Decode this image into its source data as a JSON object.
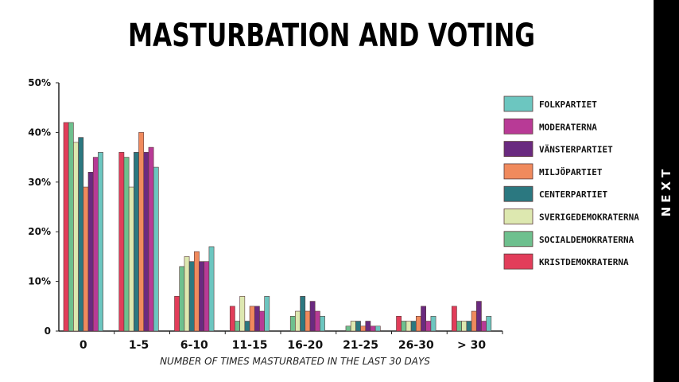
{
  "title": "MASTURBATION AND VOTING",
  "next_label": "NEXT",
  "chart_data": {
    "type": "bar",
    "title": "MASTURBATION AND VOTING",
    "xlabel": "NUMBER OF TIMES MASTURBATED IN THE LAST 30 DAYS",
    "ylabel": "",
    "ylim": [
      0,
      50
    ],
    "yticks": [
      0,
      10,
      20,
      30,
      40,
      50
    ],
    "ytick_labels": [
      "0",
      "10%",
      "20%",
      "30%",
      "40%",
      "50%"
    ],
    "grid": false,
    "legend_position": "right",
    "categories": [
      "0",
      "1-5",
      "6-10",
      "11-15",
      "16-20",
      "21-25",
      "26-30",
      "> 30"
    ],
    "series": [
      {
        "name": "KRISTDEMOKRATERNA",
        "color": "#e23d5a",
        "values": [
          42,
          36,
          7,
          5,
          0,
          0,
          3,
          5
        ]
      },
      {
        "name": "SOCIALDEMOKRATERNA",
        "color": "#6ec08e",
        "values": [
          42,
          35,
          13,
          2,
          3,
          1,
          2,
          2
        ]
      },
      {
        "name": "SVERIGEDEMOKRATERNA",
        "color": "#dde8b0",
        "values": [
          38,
          29,
          15,
          7,
          4,
          2,
          2,
          2
        ]
      },
      {
        "name": "CENTERPARTIET",
        "color": "#2b7880",
        "values": [
          39,
          36,
          14,
          2,
          7,
          2,
          2,
          2
        ]
      },
      {
        "name": "MILJÖPARTIET",
        "color": "#f08a5d",
        "values": [
          29,
          40,
          16,
          5,
          4,
          1,
          3,
          4
        ]
      },
      {
        "name": "VÄNSTERPARTIET",
        "color": "#6a2a80",
        "values": [
          32,
          36,
          14,
          5,
          6,
          2,
          5,
          6
        ]
      },
      {
        "name": "MODERATERNA",
        "color": "#b83a96",
        "values": [
          35,
          37,
          14,
          4,
          4,
          1,
          2,
          2
        ]
      },
      {
        "name": "FOLKPARTIET",
        "color": "#6cc6c0",
        "values": [
          36,
          33,
          17,
          7,
          3,
          1,
          3,
          3
        ]
      }
    ],
    "legend_order": [
      "FOLKPARTIET",
      "MODERATERNA",
      "VÄNSTERPARTIET",
      "MILJÖPARTIET",
      "CENTERPARTIET",
      "SVERIGEDEMOKRATERNA",
      "SOCIALDEMOKRATERNA",
      "KRISTDEMOKRATERNA"
    ]
  }
}
